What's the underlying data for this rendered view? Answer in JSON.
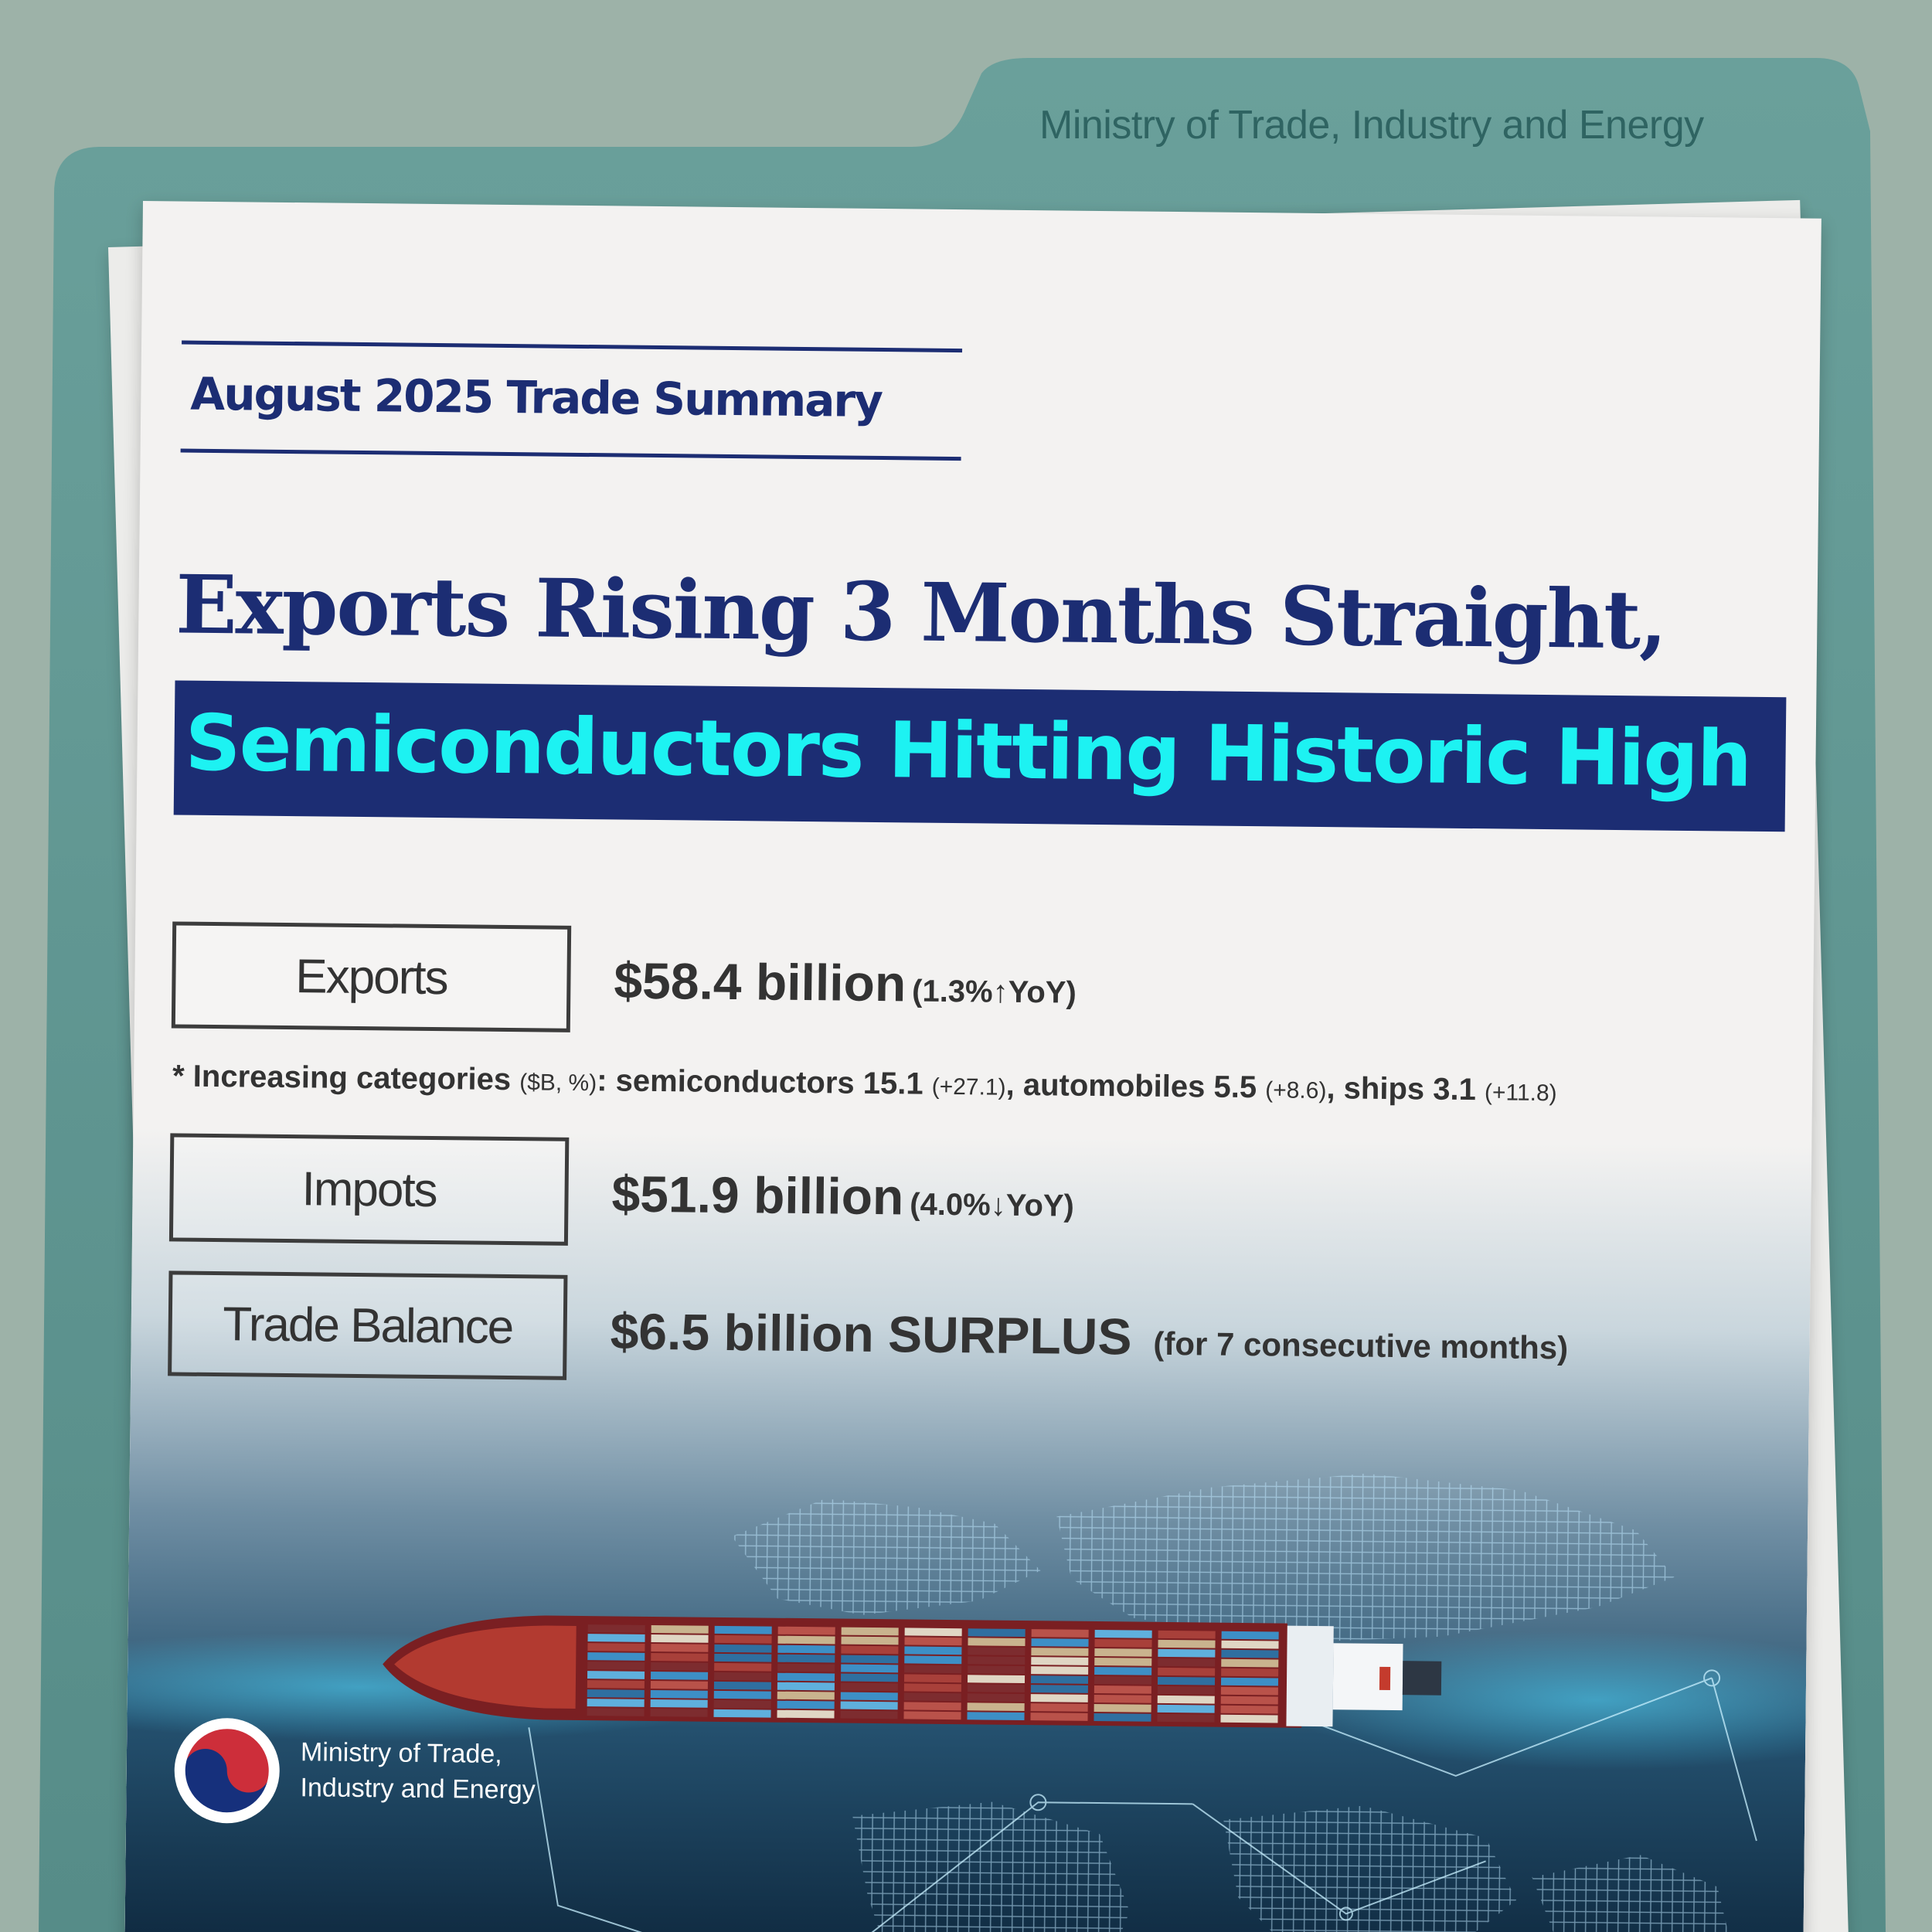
{
  "colors": {
    "background": "#9db2a8",
    "folder": "#5f9692",
    "navy": "#1c2d73",
    "cyan": "#1df2f2",
    "paper": "#f3f2f1"
  },
  "folder": {
    "tab_label": "Ministry of Trade, Industry and Energy"
  },
  "header": {
    "summary_title": "August 2025 Trade Summary",
    "headline_line1": "Exports Rising 3 Months Straight,",
    "headline_line2": "Semiconductors Hitting Historic High"
  },
  "stats": {
    "exports": {
      "label": "Exports",
      "value": "$58.4 billion",
      "change": "(1.3%↑YoY)"
    },
    "categories": {
      "prefix": "* Increasing categories",
      "unit": "($B, %)",
      "colon": ":",
      "semiconductors": "semiconductors 15.1",
      "semiconductors_change": "(+27.1)",
      "automobiles": ", automobiles 5.5",
      "automobiles_change": "(+8.6)",
      "ships": ", ships 3.1",
      "ships_change": "(+11.8)"
    },
    "imports": {
      "label": "Impots",
      "value": "$51.9 billion",
      "change": "(4.0%↓YoY)"
    },
    "trade_balance": {
      "label": "Trade Balance",
      "value": "$6.5 billion SURPLUS",
      "note": "(for 7 consecutive months)"
    }
  },
  "footer": {
    "logo_icon": "taegeuk-emblem-icon",
    "org_name": "Ministry of Trade,\nIndustry and Energy"
  }
}
